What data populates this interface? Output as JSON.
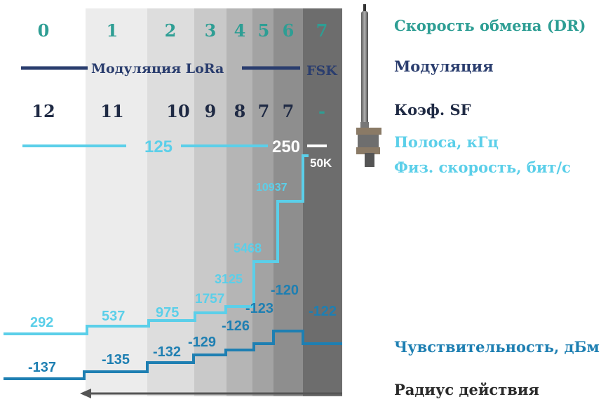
{
  "colors": {
    "teal": "#2e9e94",
    "navy": "#2a3d6e",
    "dark": "#1f2a44",
    "light_blue": "#5bcfe9",
    "mid_blue": "#1e7fb2",
    "arrow": "#555555"
  },
  "dr": [
    "0",
    "1",
    "2",
    "3",
    "4",
    "5",
    "6",
    "7"
  ],
  "modulation": {
    "lora": "Модуляция LoRa",
    "fsk": "FSK"
  },
  "sf": [
    "12",
    "11",
    "10",
    "9",
    "8",
    "7",
    "7",
    "-"
  ],
  "bandwidth": {
    "bw125": "125",
    "bw250": "250"
  },
  "bitrate": [
    "292",
    "537",
    "975",
    "1757",
    "3125",
    "5468",
    "10937",
    "50K"
  ],
  "sensitivity": [
    "-137",
    "-135",
    "-132",
    "-129",
    "-126",
    "-123",
    "-120",
    "-122"
  ],
  "legend": {
    "dr": "Скорость обмена (DR)",
    "modulation": "Модуляция",
    "sf": "Коэф. SF",
    "bandwidth": "Полоса, кГц",
    "bitrate": "Физ. скорость, бит/с",
    "sensitivity": "Чувствительность, дБм",
    "range": "Радиус действия"
  },
  "antenna_icon": "antenna-icon"
}
